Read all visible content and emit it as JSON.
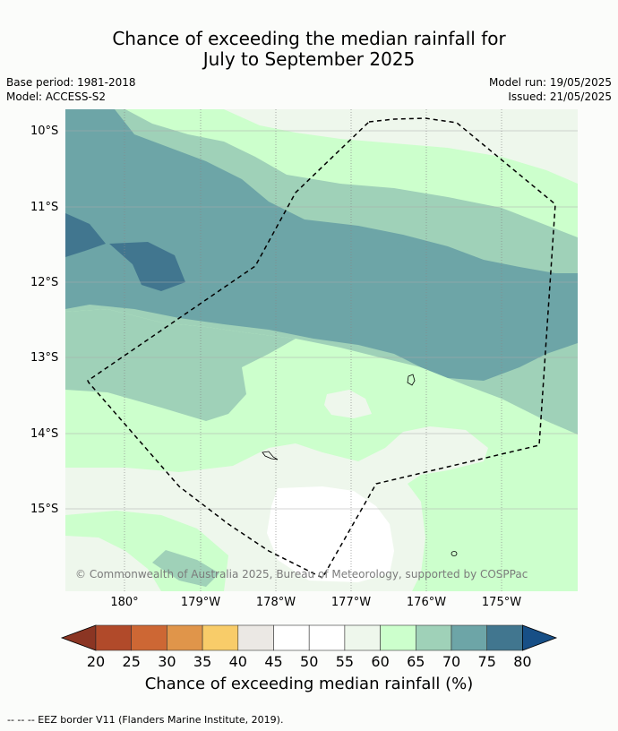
{
  "title_line1": "Chance of exceeding the median rainfall for",
  "title_line2": "July to September 2025",
  "base_period": "Base period: 1981-2018",
  "model": "Model: ACCESS-S2",
  "model_run": "Model run: 19/05/2025",
  "issued": "Issued: 21/05/2025",
  "lat_labels": [
    "10°S",
    "11°S",
    "12°S",
    "13°S",
    "14°S",
    "15°S"
  ],
  "lon_labels": [
    "180°",
    "179°W",
    "178°W",
    "177°W",
    "176°W",
    "175°W"
  ],
  "copyright": "© Commonwealth of Australia 2025, Bureau of Meteorology, supported by COSPPac",
  "colorbar": {
    "ticks": [
      "20",
      "25",
      "30",
      "35",
      "40",
      "45",
      "50",
      "55",
      "60",
      "65",
      "70",
      "75",
      "80"
    ],
    "colors": [
      "#8b3523",
      "#b14a2a",
      "#cd6734",
      "#e0954a",
      "#f8cc69",
      "#ebe8e4",
      "#ffffff",
      "#ffffff",
      "#eef7ec",
      "#ccffcc",
      "#9fd1b8",
      "#6da5a7",
      "#41768f",
      "#174f86"
    ],
    "title": "Chance of exceeding median rainfall (%)"
  },
  "footer": "-- -- -- EEZ border V11 (Flanders Marine Institute, 2019)."
}
